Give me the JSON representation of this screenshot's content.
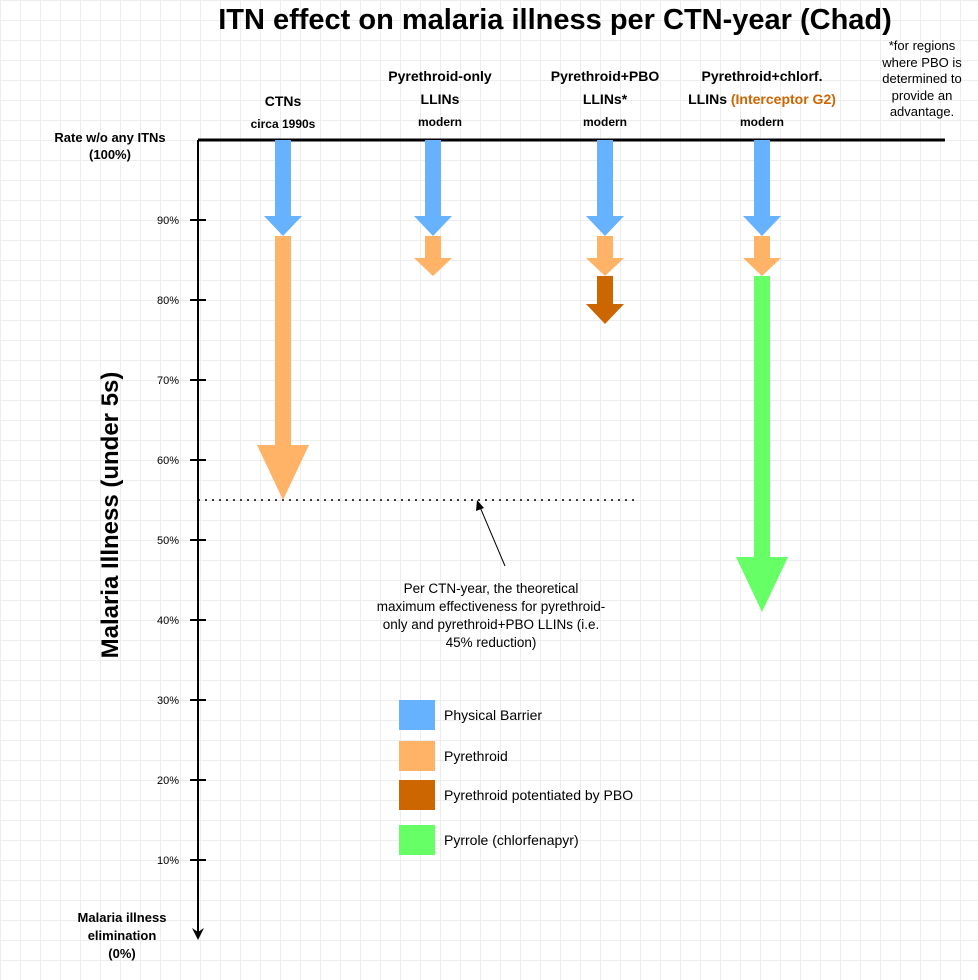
{
  "chart_data": {
    "type": "waterfall-arrows",
    "title": "ITN effect on malaria illness per CTN-year (Chad)",
    "ylabel": "Malaria Illness (under 5s)",
    "ylim": [
      0,
      100
    ],
    "y_ticks": [
      "90%",
      "80%",
      "70%",
      "60%",
      "50%",
      "40%",
      "30%",
      "20%",
      "10%"
    ],
    "top_label": [
      "Rate w/o any ITNs",
      "(100%)"
    ],
    "bottom_label": [
      "Malaria illness",
      "elimination",
      "(0%)"
    ],
    "footnote": "*for regions where PBO is determined to provide an advantage.",
    "categories": [
      {
        "line1": "CTNs",
        "line2": "circa 1990s",
        "line2b": "",
        "sub": ""
      },
      {
        "line1": "Pyrethroid-only",
        "line2": "LLINs",
        "line2b": "",
        "sub": "modern"
      },
      {
        "line1": "Pyrethroid+PBO",
        "line2": "LLINs*",
        "line2b": "",
        "sub": "modern"
      },
      {
        "line1": "Pyrethroid+chlorf.",
        "line2": "LLINs ",
        "line2b": "(Interceptor G2)",
        "sub": "modern"
      }
    ],
    "series": [
      {
        "name": "Physical Barrier",
        "color": "#66b2ff"
      },
      {
        "name": "Pyrethroid",
        "color": "#ffb366"
      },
      {
        "name": "Pyrethroid potentiated by PBO",
        "color": "#cc6600"
      },
      {
        "name": "Pyrrole (chlorfenapyr)",
        "color": "#66ff66"
      }
    ],
    "segments": [
      [
        {
          "series": "Physical Barrier",
          "from": 100,
          "to": 88
        },
        {
          "series": "Pyrethroid",
          "from": 88,
          "to": 55
        }
      ],
      [
        {
          "series": "Physical Barrier",
          "from": 100,
          "to": 88
        },
        {
          "series": "Pyrethroid",
          "from": 88,
          "to": 83
        }
      ],
      [
        {
          "series": "Physical Barrier",
          "from": 100,
          "to": 88
        },
        {
          "series": "Pyrethroid",
          "from": 88,
          "to": 83
        },
        {
          "series": "Pyrethroid potentiated by PBO",
          "from": 83,
          "to": 77
        }
      ],
      [
        {
          "series": "Physical Barrier",
          "from": 100,
          "to": 88
        },
        {
          "series": "Pyrethroid",
          "from": 88,
          "to": 83
        },
        {
          "series": "Pyrrole (chlorfenapyr)",
          "from": 83,
          "to": 41
        }
      ]
    ],
    "reference_line": {
      "value": 55,
      "annotation": "Per CTN-year, the theoretical maximum effectiveness for pyrethroid-only and pyrethroid+PBO LLINs (i.e. 45% reduction)"
    }
  }
}
